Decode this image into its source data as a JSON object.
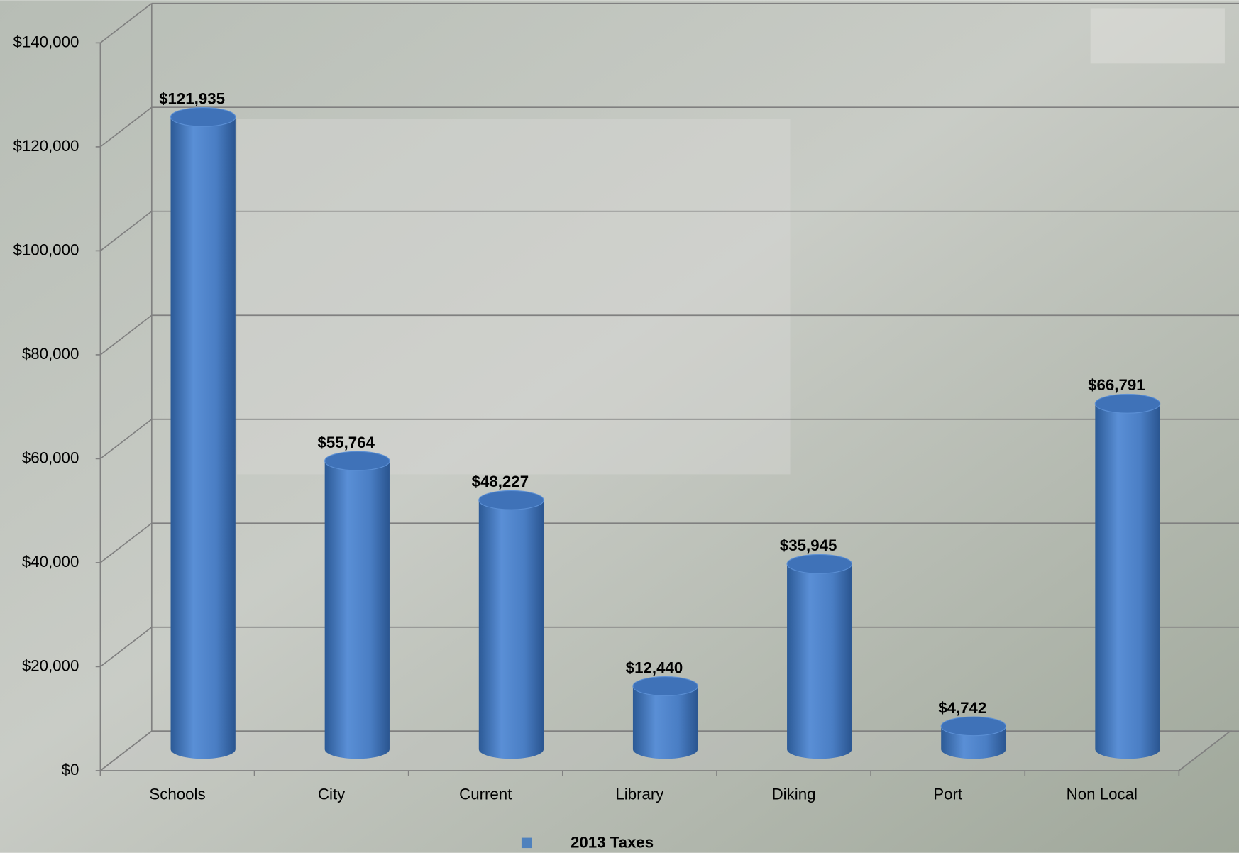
{
  "chart_data": {
    "type": "bar3d",
    "legend": "2013 Taxes",
    "color": "#4f81bd",
    "categories": [
      "Schools",
      "City",
      "Current",
      "Library",
      "Diking",
      "Port",
      "Non Local"
    ],
    "values": [
      121935,
      55764,
      48227,
      12440,
      35945,
      4742,
      66791
    ],
    "value_labels": [
      "$121,935",
      "$55,764",
      "$48,227",
      "$12,440",
      "$35,945",
      "$4,742",
      "$66,791"
    ],
    "ylim": [
      0,
      140000
    ],
    "yticks": [
      {
        "value": 0,
        "label": "$0"
      },
      {
        "value": 20000,
        "label": "$20,000"
      },
      {
        "value": 40000,
        "label": "$40,000"
      },
      {
        "value": 60000,
        "label": "$60,000"
      },
      {
        "value": 80000,
        "label": "$80,000"
      },
      {
        "value": 100000,
        "label": "$100,000"
      },
      {
        "value": 120000,
        "label": "$120,000"
      },
      {
        "value": 140000,
        "label": "$140,000"
      }
    ],
    "grid": true
  }
}
